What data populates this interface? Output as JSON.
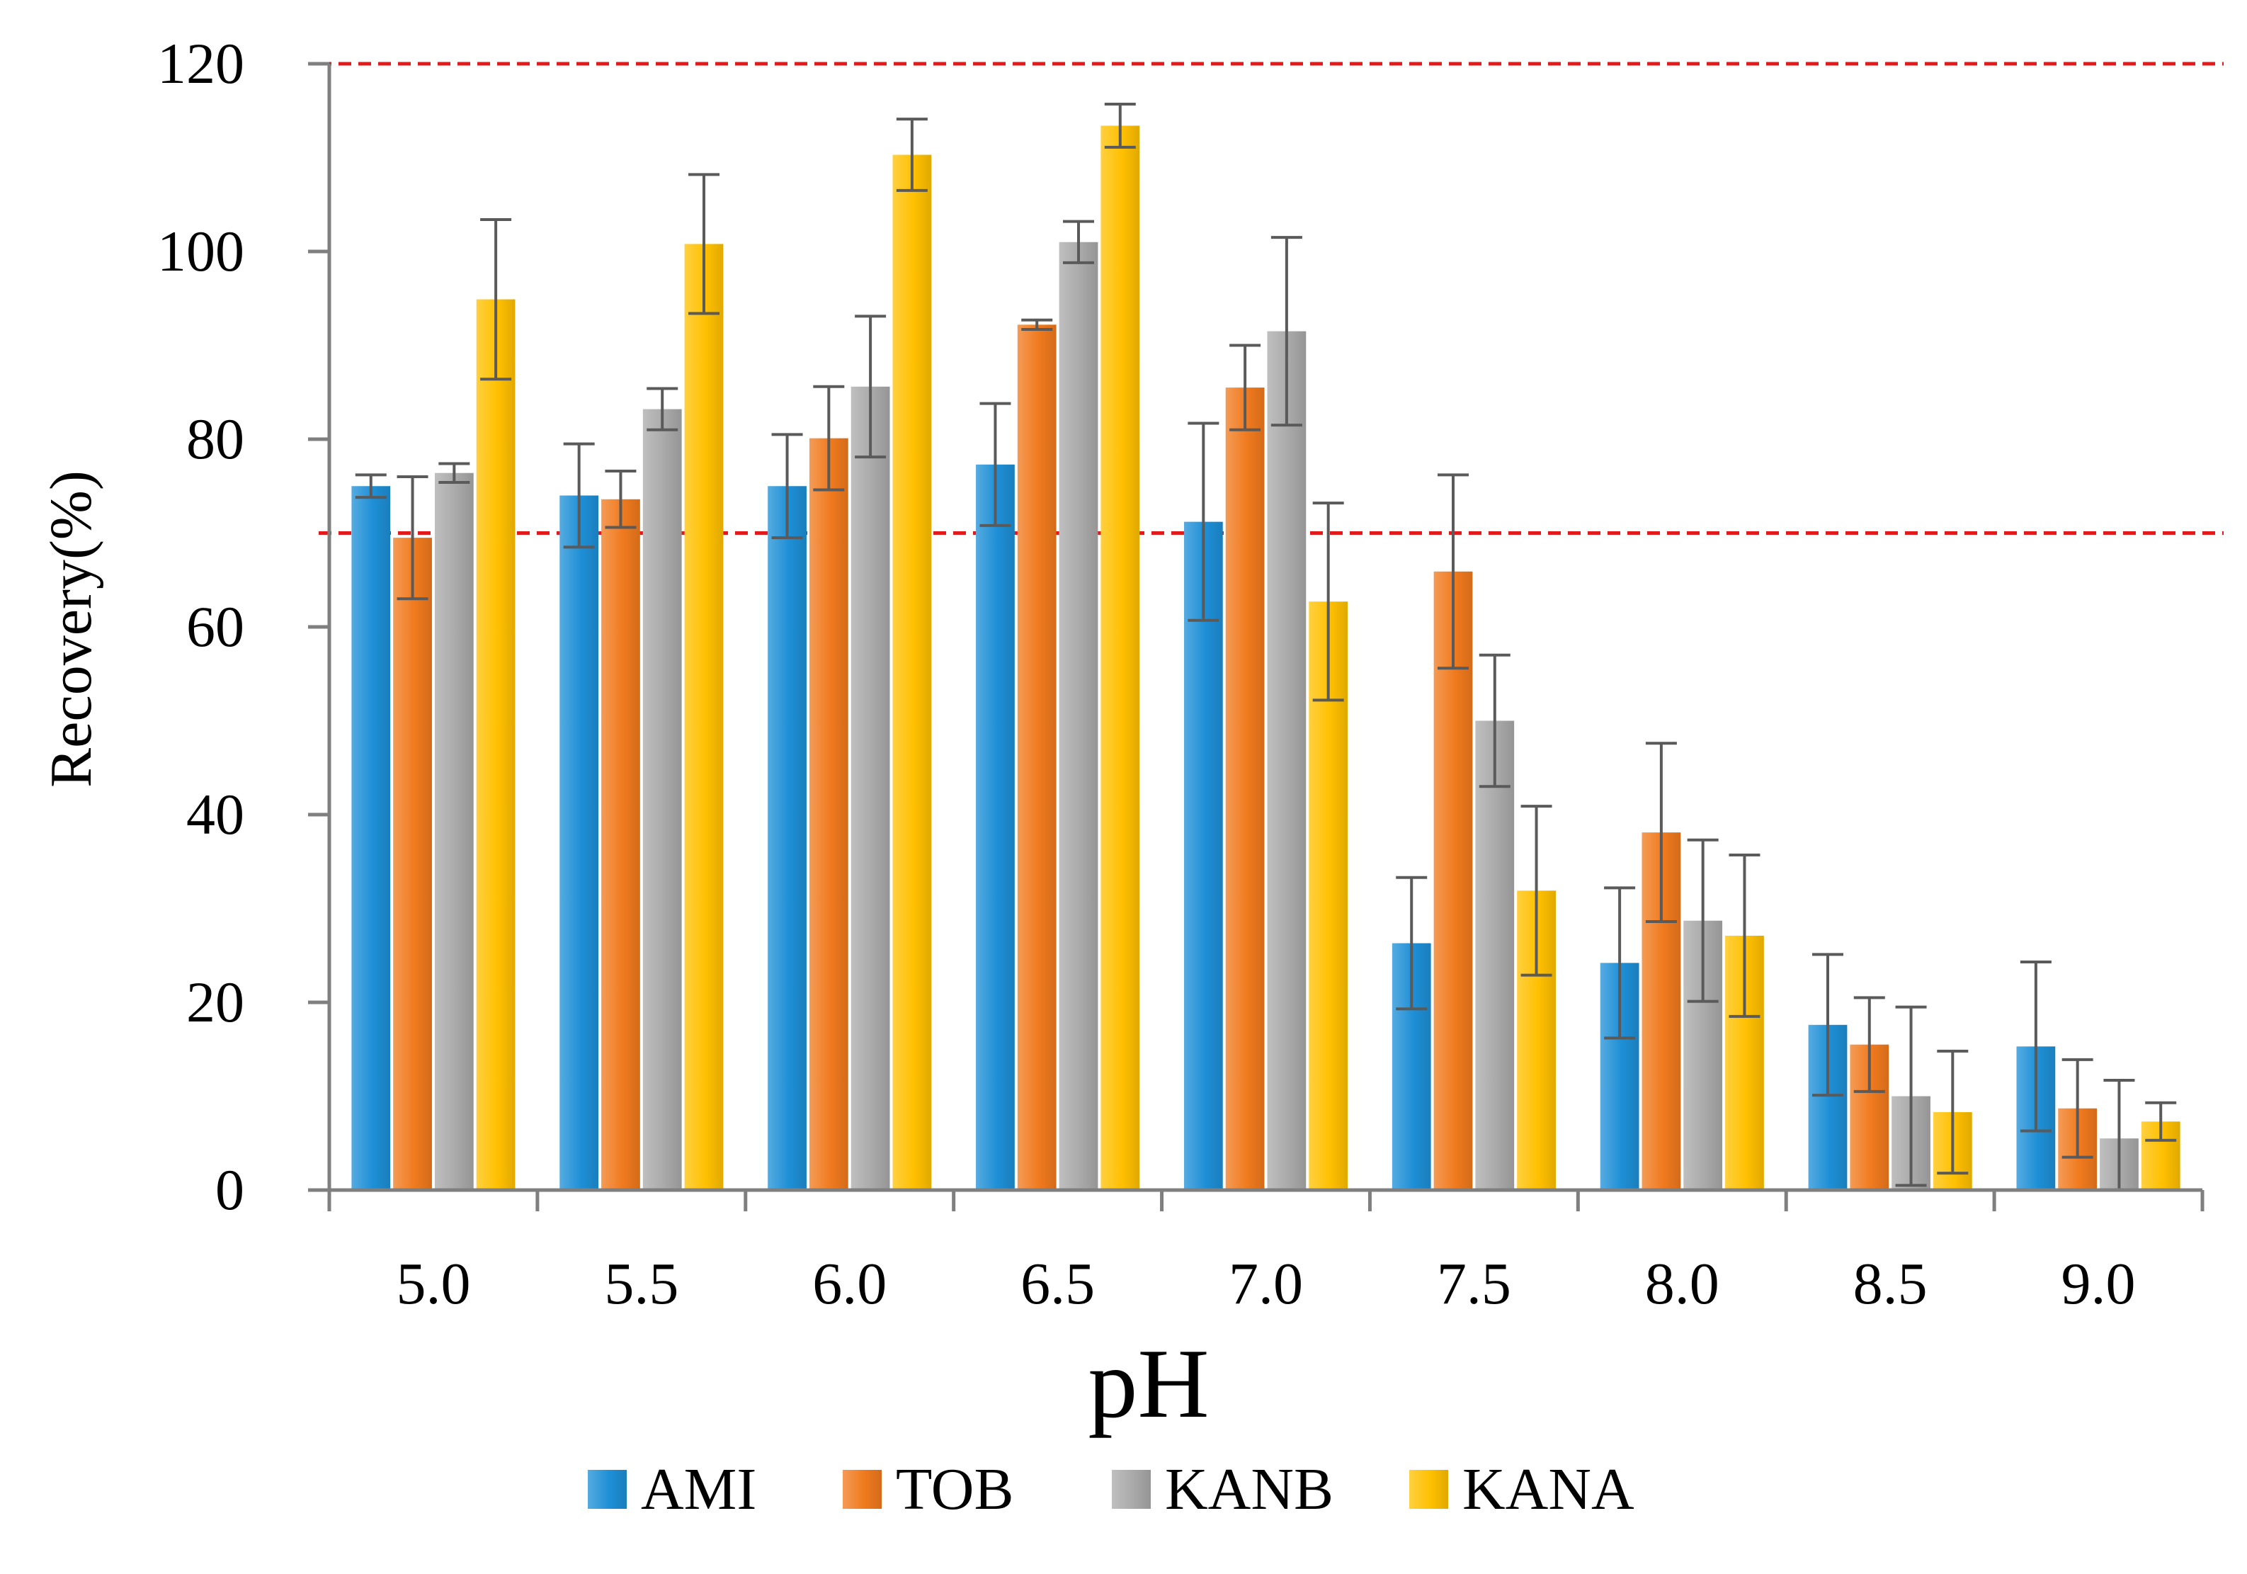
{
  "chart_data": {
    "type": "bar",
    "title": "",
    "xlabel": "pH",
    "ylabel": "Recovery(%)",
    "ylim": [
      0,
      120
    ],
    "yticks": [
      0,
      20,
      40,
      60,
      80,
      100,
      120
    ],
    "grid": false,
    "legend_position": "bottom-center",
    "categories": [
      "5.0",
      "5.5",
      "6.0",
      "6.5",
      "7.0",
      "7.5",
      "8.0",
      "8.5",
      "9.0"
    ],
    "series": [
      {
        "name": "AMI",
        "color": "#1E8FD6",
        "values": [
          75.0,
          74.0,
          75.0,
          77.3,
          71.2,
          26.3,
          24.2,
          17.6,
          15.3
        ],
        "errors": [
          1.2,
          5.5,
          5.5,
          6.5,
          10.5,
          7.0,
          8.0,
          7.5,
          9.0
        ]
      },
      {
        "name": "TOB",
        "color": "#F07A1E",
        "values": [
          69.5,
          73.6,
          80.1,
          92.2,
          85.5,
          65.9,
          38.1,
          15.5,
          8.7
        ],
        "errors": [
          6.5,
          3.0,
          5.5,
          0.5,
          4.5,
          10.3,
          9.5,
          5.0,
          5.2
        ]
      },
      {
        "name": "KANB",
        "color": "#A9A9A9",
        "values": [
          76.4,
          83.2,
          85.6,
          101.0,
          91.5,
          50.0,
          28.7,
          10.0,
          5.5
        ],
        "errors": [
          1.0,
          2.2,
          7.5,
          2.2,
          10.0,
          7.0,
          8.6,
          9.5,
          6.2
        ]
      },
      {
        "name": "KANA",
        "color": "#FFC000",
        "values": [
          94.9,
          100.8,
          110.3,
          113.4,
          62.7,
          31.9,
          27.1,
          8.3,
          7.3
        ],
        "errors": [
          8.5,
          7.4,
          3.8,
          2.3,
          10.5,
          9.0,
          8.6,
          6.5,
          2.0
        ]
      }
    ],
    "reference_lines": [
      {
        "y": 120,
        "color": "#E11B1B",
        "style": "dashed"
      },
      {
        "y": 70,
        "color": "#E11B1B",
        "style": "dashed"
      }
    ]
  }
}
